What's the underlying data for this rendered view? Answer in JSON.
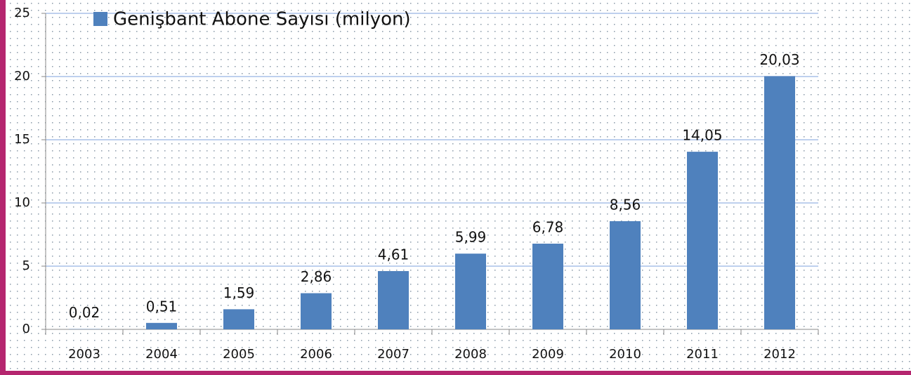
{
  "chart_data": {
    "type": "bar",
    "categories": [
      "2003",
      "2004",
      "2005",
      "2006",
      "2007",
      "2008",
      "2009",
      "2010",
      "2011",
      "2012"
    ],
    "series": [
      {
        "name": "Genişbant Abone Sayısı (milyon)",
        "color": "#4f81bd",
        "values": [
          0.02,
          0.51,
          1.59,
          2.86,
          4.61,
          5.99,
          6.78,
          8.56,
          14.05,
          20.03
        ],
        "value_labels": [
          "0,02",
          "0,51",
          "1,59",
          "2,86",
          "4,61",
          "5,99",
          "6,78",
          "8,56",
          "14,05",
          "20,03"
        ]
      }
    ],
    "ylim": [
      0,
      25
    ],
    "yticks": [
      0,
      5,
      10,
      15,
      20,
      25
    ],
    "grid": true,
    "legend": "top"
  }
}
